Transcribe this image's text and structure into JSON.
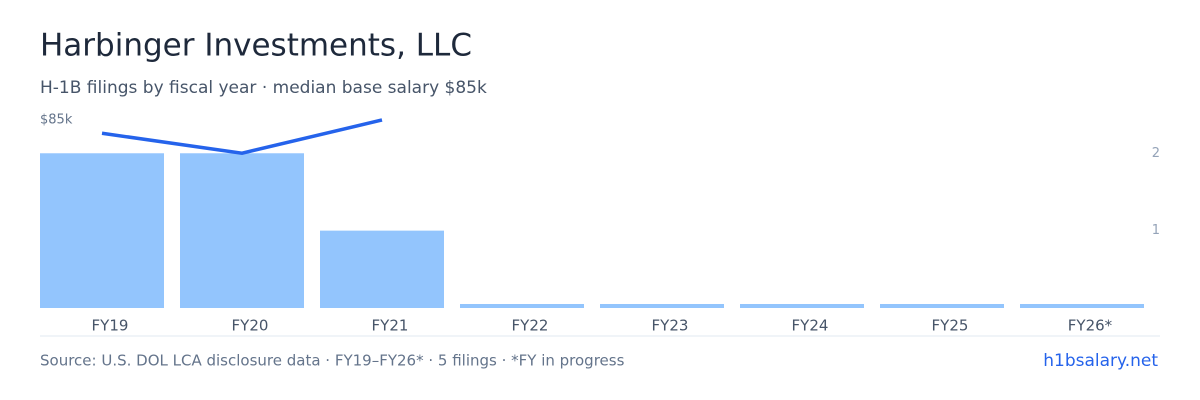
{
  "chart_data": {
    "type": "bar",
    "title": "Harbinger Investments, LLC",
    "subtitle": "H-1B filings by fiscal year · median base salary $85k",
    "categories": [
      "FY19",
      "FY20",
      "FY21",
      "FY22",
      "FY23",
      "FY24",
      "FY25",
      "FY26*"
    ],
    "series": [
      {
        "type": "bar",
        "axis": "y2",
        "color": "#93c5fd",
        "values": [
          2,
          2,
          1,
          0,
          0,
          0,
          0,
          0
        ]
      },
      {
        "type": "line",
        "axis": "y",
        "color": "#2563eb",
        "values": [
          79000,
          70000,
          85000,
          null,
          null,
          null,
          null,
          null
        ]
      }
    ],
    "ylim": [
      0,
      85000
    ],
    "yticks": [
      {
        "value": 85000,
        "label": "$85k"
      }
    ],
    "y2lim": [
      0,
      2.43
    ],
    "y2ticks": [
      1,
      2
    ],
    "footer": "Source: U.S. DOL LCA disclosure data · FY19–FY26* · 5 filings · *FY in progress",
    "link": "h1bsalary.net"
  }
}
